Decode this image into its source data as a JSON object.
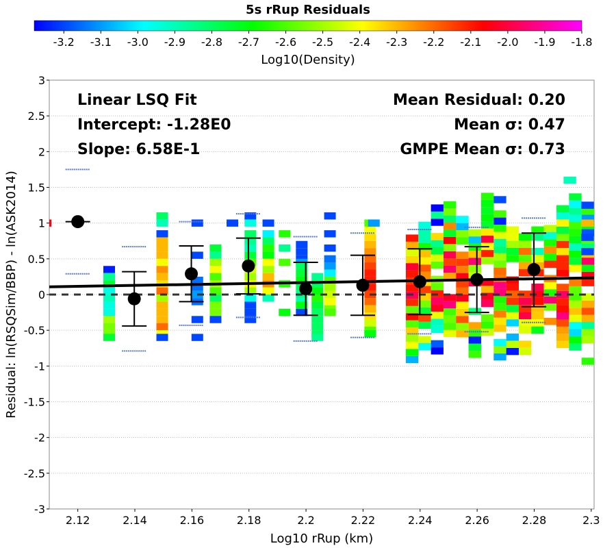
{
  "chart_data": {
    "type": "heatmap",
    "title": "5s rRup Residuals",
    "xlabel": "Log10 rRup (km)",
    "ylabel": "Residual: ln(RSQSim/BBP) - ln(ASK2014)",
    "xlim": [
      2.11,
      2.301
    ],
    "ylim": [
      -3,
      3
    ],
    "x_ticks": [
      2.12,
      2.14,
      2.16,
      2.18,
      2.2,
      2.22,
      2.24,
      2.26,
      2.28,
      2.3
    ],
    "x_tick_labels": [
      "2.12",
      "2.14",
      "2.16",
      "2.18",
      "2.2",
      "2.22",
      "2.24",
      "2.26",
      "2.28",
      "2.3"
    ],
    "y_ticks": [
      -3,
      -2.5,
      -2,
      -1.5,
      -1,
      -0.5,
      0,
      0.5,
      1,
      1.5,
      2,
      2.5,
      3
    ],
    "y_tick_labels": [
      "-3",
      "-2.5",
      "-2",
      "-1.5",
      "-1",
      "-0.5",
      "0",
      "0.5",
      "1",
      "1.5",
      "2",
      "2.5",
      "3"
    ],
    "grid": true,
    "colorbar": {
      "label": "Log10(Density)",
      "range": [
        -3.28,
        -1.8
      ],
      "ticks": [
        -3.2,
        -3.1,
        -3.0,
        -2.9,
        -2.8,
        -2.7,
        -2.6,
        -2.5,
        -2.4,
        -2.3,
        -2.2,
        -2.1,
        -2.0,
        -1.9,
        -1.8
      ],
      "tick_labels": [
        "-3.2",
        "-3.1",
        "-3.0",
        "-2.9",
        "-2.8",
        "-2.7",
        "-2.6",
        "-2.5",
        "-2.4",
        "-2.3",
        "-2.2",
        "-2.1",
        "-2.0",
        "-1.9",
        "-1.8"
      ],
      "colors": [
        "#0000ff",
        "#00ffff",
        "#00ff00",
        "#ffff00",
        "#ff0000",
        "#ff00ff"
      ]
    },
    "annotations": {
      "left": [
        "Linear LSQ Fit",
        "Intercept: -1.28E0",
        "Slope: 6.58E-1"
      ],
      "right": [
        "Mean Residual: 0.20",
        "Mean σ: 0.47",
        "GMPE Mean σ: 0.73"
      ]
    },
    "fit_line": {
      "intercept": -1.28,
      "slope": 0.658
    },
    "zero_line": 0,
    "bin_means": [
      {
        "x": 2.12,
        "mean": 1.02,
        "minus_sigma": 1.02,
        "plus_sigma": 1.02
      },
      {
        "x": 2.1398,
        "mean": -0.06,
        "minus_sigma": -0.44,
        "plus_sigma": 0.32
      },
      {
        "x": 2.1598,
        "mean": 0.29,
        "minus_sigma": -0.1,
        "plus_sigma": 0.68
      },
      {
        "x": 2.1798,
        "mean": 0.4,
        "minus_sigma": 0.01,
        "plus_sigma": 0.79
      },
      {
        "x": 2.1999,
        "mean": 0.08,
        "minus_sigma": -0.29,
        "plus_sigma": 0.45
      },
      {
        "x": 2.2199,
        "mean": 0.13,
        "minus_sigma": -0.29,
        "plus_sigma": 0.55
      },
      {
        "x": 2.2399,
        "mean": 0.18,
        "minus_sigma": -0.28,
        "plus_sigma": 0.64
      },
      {
        "x": 2.2599,
        "mean": 0.21,
        "minus_sigma": -0.25,
        "plus_sigma": 0.67
      },
      {
        "x": 2.2799,
        "mean": 0.35,
        "minus_sigma": -0.17,
        "plus_sigma": 0.86
      }
    ],
    "gmpe_sigma_ticks": [
      {
        "x": 2.12,
        "y": [
          1.75,
          0.29
        ]
      },
      {
        "x": 2.1398,
        "y": [
          0.67,
          -0.79
        ]
      },
      {
        "x": 2.1598,
        "y": [
          1.02,
          -0.43
        ]
      },
      {
        "x": 2.1798,
        "y": [
          1.13,
          -0.32
        ]
      },
      {
        "x": 2.1999,
        "y": [
          0.81,
          -0.65
        ]
      },
      {
        "x": 2.2199,
        "y": [
          0.86,
          -0.6
        ]
      },
      {
        "x": 2.2399,
        "y": [
          0.91,
          -0.55
        ]
      },
      {
        "x": 2.2599,
        "y": [
          0.94,
          -0.52
        ]
      },
      {
        "x": 2.2799,
        "y": [
          1.07,
          -0.39
        ]
      }
    ],
    "density_columns": [
      {
        "x": 2.1087,
        "cells": [
          [
            1.0,
            -2.05
          ]
        ]
      },
      {
        "x": 2.131,
        "cells": [
          [
            0.35,
            -3.25
          ],
          [
            0.25,
            -2.85
          ],
          [
            0.15,
            -2.75
          ],
          [
            0.05,
            -2.95
          ],
          [
            -0.05,
            -2.9
          ],
          [
            -0.15,
            -2.95
          ],
          [
            -0.25,
            -2.95
          ],
          [
            -0.35,
            -2.5
          ],
          [
            -0.45,
            -2.55
          ],
          [
            -0.55,
            -2.55
          ],
          [
            -0.6,
            -2.75
          ]
        ]
      },
      {
        "x": 2.1496,
        "cells": [
          [
            1.1,
            -2.8
          ],
          [
            1.0,
            -2.9
          ],
          [
            0.85,
            -3.2
          ],
          [
            0.75,
            -2.3
          ],
          [
            0.65,
            -2.3
          ],
          [
            0.55,
            -2.3
          ],
          [
            0.45,
            -2.4
          ],
          [
            0.35,
            -2.25
          ],
          [
            0.25,
            -2.3
          ],
          [
            0.15,
            -2.35
          ],
          [
            0.05,
            -2.2
          ],
          [
            -0.05,
            -2.5
          ],
          [
            -0.15,
            -2.3
          ],
          [
            -0.25,
            -2.3
          ],
          [
            -0.35,
            -2.3
          ],
          [
            -0.45,
            -2.2
          ],
          [
            -0.55,
            -2.4
          ],
          [
            -0.6,
            -3.2
          ]
        ]
      },
      {
        "x": 2.1619,
        "cells": [
          [
            1.0,
            -3.2
          ],
          [
            0.55,
            -3.2
          ],
          [
            0.2,
            -3.15
          ],
          [
            0.1,
            -3.15
          ],
          [
            0.0,
            -3.1
          ],
          [
            -0.1,
            -3.15
          ],
          [
            -0.35,
            -3.2
          ],
          [
            -0.6,
            -3.2
          ]
        ]
      },
      {
        "x": 2.1683,
        "cells": [
          [
            0.65,
            -2.75
          ],
          [
            0.55,
            -2.85
          ],
          [
            0.45,
            -2.5
          ],
          [
            0.35,
            -2.4
          ],
          [
            0.25,
            -2.6
          ],
          [
            0.15,
            -2.5
          ],
          [
            0.05,
            -2.6
          ],
          [
            -0.05,
            -2.8
          ],
          [
            -0.15,
            -2.55
          ],
          [
            -0.25,
            -2.55
          ],
          [
            -0.35,
            -3.2
          ]
        ]
      },
      {
        "x": 2.1742,
        "cells": [
          [
            1.0,
            -3.2
          ]
        ]
      },
      {
        "x": 2.1805,
        "cells": [
          [
            1.1,
            -3.2
          ],
          [
            1.0,
            -2.95
          ],
          [
            0.85,
            -2.8
          ],
          [
            0.75,
            -2.85
          ],
          [
            0.65,
            -2.9
          ],
          [
            0.55,
            -2.75
          ],
          [
            0.45,
            -2.6
          ],
          [
            0.35,
            -2.45
          ],
          [
            0.25,
            -2.5
          ],
          [
            0.15,
            -2.4
          ],
          [
            0.05,
            -2.5
          ],
          [
            -0.05,
            -2.95
          ],
          [
            -0.15,
            -3.2
          ],
          [
            -0.25,
            -3.2
          ],
          [
            -0.35,
            -3.2
          ]
        ]
      },
      {
        "x": 2.1868,
        "cells": [
          [
            1.0,
            -3.2
          ],
          [
            0.85,
            -3.0
          ],
          [
            0.75,
            -2.8
          ],
          [
            0.65,
            -2.65
          ],
          [
            0.55,
            -2.7
          ],
          [
            0.45,
            -2.4
          ],
          [
            0.35,
            -2.5
          ],
          [
            0.25,
            -2.3
          ],
          [
            0.15,
            -2.25
          ],
          [
            0.05,
            -2.4
          ],
          [
            -0.05,
            -2.9
          ]
        ]
      },
      {
        "x": 2.1925,
        "cells": [
          [
            0.85,
            -2.65
          ],
          [
            0.65,
            -2.85
          ],
          [
            0.45,
            -2.6
          ],
          [
            0.15,
            -2.65
          ],
          [
            -0.25,
            -2.7
          ]
        ]
      },
      {
        "x": 2.1985,
        "cells": [
          [
            0.7,
            -3.2
          ],
          [
            0.6,
            -3.2
          ],
          [
            0.5,
            -3.2
          ],
          [
            0.45,
            -3.1
          ],
          [
            0.4,
            -2.8
          ],
          [
            0.3,
            -2.75
          ],
          [
            0.2,
            -2.7
          ],
          [
            0.1,
            -2.8
          ],
          [
            0.0,
            -2.85
          ],
          [
            -0.1,
            -2.9
          ],
          [
            -0.15,
            -2.7
          ],
          [
            -0.25,
            -3.2
          ]
        ]
      },
      {
        "x": 2.204,
        "cells": [
          [
            0.25,
            -2.85
          ],
          [
            0.15,
            -2.8
          ],
          [
            0.05,
            -2.7
          ],
          [
            -0.05,
            -2.65
          ],
          [
            -0.15,
            -2.75
          ],
          [
            -0.25,
            -2.8
          ],
          [
            -0.35,
            -2.8
          ],
          [
            -0.45,
            -2.8
          ],
          [
            -0.55,
            -2.8
          ],
          [
            -0.6,
            -2.85
          ]
        ]
      },
      {
        "x": 2.2084,
        "cells": [
          [
            1.1,
            -3.2
          ],
          [
            0.85,
            -3.2
          ],
          [
            0.65,
            -3.2
          ],
          [
            0.5,
            -3.15
          ],
          [
            0.4,
            -3.1
          ],
          [
            0.3,
            -3.0
          ],
          [
            0.2,
            -2.6
          ],
          [
            0.1,
            -2.5
          ],
          [
            0.0,
            -2.45
          ],
          [
            -0.1,
            -2.4
          ],
          [
            -0.2,
            -2.55
          ],
          [
            -0.25,
            -2.6
          ]
        ]
      },
      {
        "x": 2.2225,
        "cells": [
          [
            1.0,
            -2.6
          ],
          [
            0.9,
            -2.4
          ],
          [
            0.8,
            -2.35
          ],
          [
            0.7,
            -2.3
          ],
          [
            0.6,
            -2.25
          ],
          [
            0.5,
            -2.2
          ],
          [
            0.4,
            -2.15
          ],
          [
            0.3,
            -2.1
          ],
          [
            0.2,
            -2.1
          ],
          [
            0.1,
            -2.1
          ],
          [
            0.0,
            -2.15
          ],
          [
            -0.1,
            -2.2
          ],
          [
            -0.2,
            -2.3
          ],
          [
            -0.3,
            -2.35
          ],
          [
            -0.4,
            -2.45
          ],
          [
            -0.5,
            -2.6
          ],
          [
            -0.55,
            -2.7
          ]
        ]
      },
      {
        "x": 2.2238,
        "cells": [
          [
            1.0,
            -3.1
          ]
        ]
      }
    ],
    "dense_region": {
      "x_range": [
        2.235,
        2.301
      ],
      "columns": 15,
      "y_range": [
        -1.0,
        1.6
      ],
      "value_range": [
        -3.28,
        -1.8
      ]
    }
  }
}
